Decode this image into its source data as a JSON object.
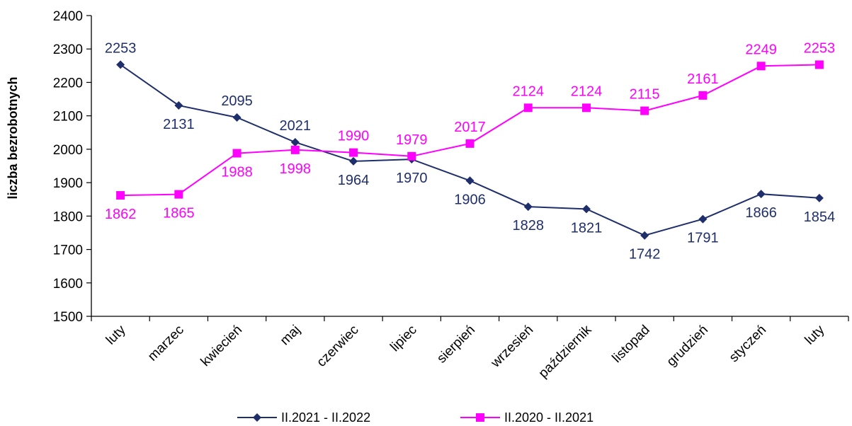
{
  "chart_data": {
    "type": "line",
    "title": "",
    "xlabel": "",
    "ylabel": "liczba bezrobotnych",
    "ylim": [
      1500,
      2400
    ],
    "yticks": [
      1500,
      1600,
      1700,
      1800,
      1900,
      2000,
      2100,
      2200,
      2300,
      2400
    ],
    "grid": false,
    "legend_position": "bottom",
    "categories": [
      "luty",
      "marzec",
      "kwiecień",
      "maj",
      "czerwiec",
      "lipiec",
      "sierpień",
      "wrzesień",
      "październik",
      "listopad",
      "grudzień",
      "styczeń",
      "luty"
    ],
    "series": [
      {
        "name": "II.2021 - II.2022",
        "color": "#1f2f6b",
        "marker": "diamond",
        "values": [
          2253,
          2131,
          2095,
          2021,
          1964,
          1970,
          1906,
          1828,
          1821,
          1742,
          1791,
          1866,
          1854
        ]
      },
      {
        "name": "II.2020 - II.2021",
        "color": "#ff00ff",
        "marker": "square",
        "values": [
          1862,
          1865,
          1988,
          1998,
          1990,
          1979,
          2017,
          2124,
          2124,
          2115,
          2161,
          2249,
          2253
        ]
      }
    ]
  }
}
